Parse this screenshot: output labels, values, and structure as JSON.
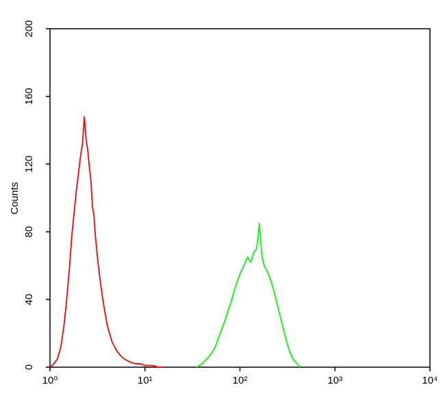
{
  "chart_data": {
    "type": "line",
    "y_label": "Counts",
    "x_log": true,
    "xlim": [
      1,
      10000
    ],
    "ylim": [
      0,
      200
    ],
    "xticks": [
      {
        "value": 1,
        "label": "10⁰"
      },
      {
        "value": 10,
        "label": "10¹"
      },
      {
        "value": 100,
        "label": "10²"
      },
      {
        "value": 1000,
        "label": "10³"
      },
      {
        "value": 10000,
        "label": "10⁴"
      }
    ],
    "yticks": [
      0,
      40,
      80,
      120,
      160,
      200
    ],
    "series": [
      {
        "color": "#ff0000",
        "x": [
          1.0,
          1.1,
          1.2,
          1.3,
          1.4,
          1.5,
          1.6,
          1.7,
          1.8,
          1.9,
          2.0,
          2.1,
          2.2,
          2.3,
          2.4,
          2.5,
          2.6,
          2.7,
          2.8,
          2.9,
          3.0,
          3.2,
          3.4,
          3.6,
          3.8,
          4.0,
          4.5,
          5,
          5.5,
          6,
          7,
          8,
          9,
          10,
          12,
          14,
          16
        ],
        "values": [
          0,
          2,
          5,
          12,
          24,
          40,
          58,
          78,
          92,
          105,
          115,
          125,
          132,
          148,
          135,
          128,
          118,
          110,
          95,
          90,
          78,
          62,
          50,
          40,
          32,
          25,
          15,
          10,
          7,
          5,
          3,
          2,
          2,
          1,
          1,
          0,
          0
        ]
      },
      {
        "color": "#00ff00",
        "x": [
          35,
          40,
          45,
          50,
          55,
          60,
          70,
          80,
          90,
          100,
          110,
          120,
          130,
          140,
          150,
          160,
          170,
          180,
          200,
          220,
          240,
          260,
          280,
          300,
          330,
          360,
          400,
          430
        ],
        "values": [
          0,
          2,
          5,
          8,
          12,
          18,
          28,
          38,
          48,
          55,
          60,
          65,
          62,
          68,
          70,
          85,
          66,
          60,
          55,
          48,
          40,
          32,
          25,
          18,
          10,
          5,
          2,
          0
        ]
      }
    ]
  }
}
